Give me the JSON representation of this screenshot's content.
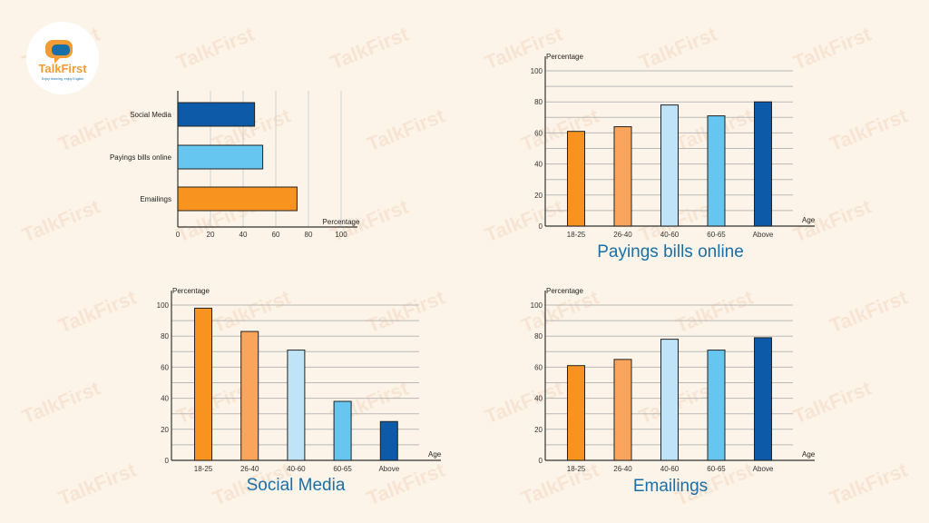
{
  "brand": {
    "name": "TalkFirst",
    "tagline": "Enjoy learning, enjoy English",
    "watermark": "TalkFirst",
    "colors": {
      "orange": "#f39c33",
      "blue": "#1a6fa8"
    }
  },
  "colors": {
    "bar_18_25": "#f7931e",
    "bar_26_40": "#fba55c",
    "bar_40_60": "#bfe3f7",
    "bar_60_65": "#66c6f0",
    "bar_above": "#0d5aa8",
    "hbar_social": "#0d5aa8",
    "hbar_bills": "#66c6f0",
    "hbar_email": "#f7931e",
    "title": "#1a6fa8"
  },
  "chart_data": [
    {
      "type": "bar",
      "orientation": "horizontal",
      "categories": [
        "Social Media",
        "Payings bills online",
        "Emailings"
      ],
      "values": [
        47,
        52,
        73
      ],
      "xlabel": "Percentage",
      "ticks": [
        "0",
        "20",
        "40",
        "60",
        "80",
        "100"
      ],
      "xlim": [
        0,
        100
      ],
      "grid": "vertical"
    },
    {
      "type": "bar",
      "title": "Payings bills online",
      "categories": [
        "18-25",
        "26-40",
        "40-60",
        "60-65",
        "Above"
      ],
      "values": [
        61,
        64,
        78,
        71,
        80
      ],
      "xlabel": "Age",
      "ylabel": "Percentage",
      "ticks": [
        "0",
        "20",
        "40",
        "60",
        "80",
        "100"
      ],
      "ylim": [
        0,
        100
      ],
      "grid": "horizontal"
    },
    {
      "type": "bar",
      "title": "Social Media",
      "categories": [
        "18-25",
        "26-40",
        "40-60",
        "60-65",
        "Above"
      ],
      "values": [
        98,
        83,
        71,
        38,
        25
      ],
      "xlabel": "Age",
      "ylabel": "Percentage",
      "ticks": [
        "0",
        "20",
        "40",
        "60",
        "80",
        "100"
      ],
      "ylim": [
        0,
        100
      ],
      "grid": "horizontal"
    },
    {
      "type": "bar",
      "title": "Emailings",
      "categories": [
        "18-25",
        "26-40",
        "40-60",
        "60-65",
        "Above"
      ],
      "values": [
        61,
        65,
        78,
        71,
        79
      ],
      "xlabel": "Age",
      "ylabel": "Percentage",
      "ticks": [
        "0",
        "20",
        "40",
        "60",
        "80",
        "100"
      ],
      "ylim": [
        0,
        100
      ],
      "grid": "horizontal"
    }
  ]
}
